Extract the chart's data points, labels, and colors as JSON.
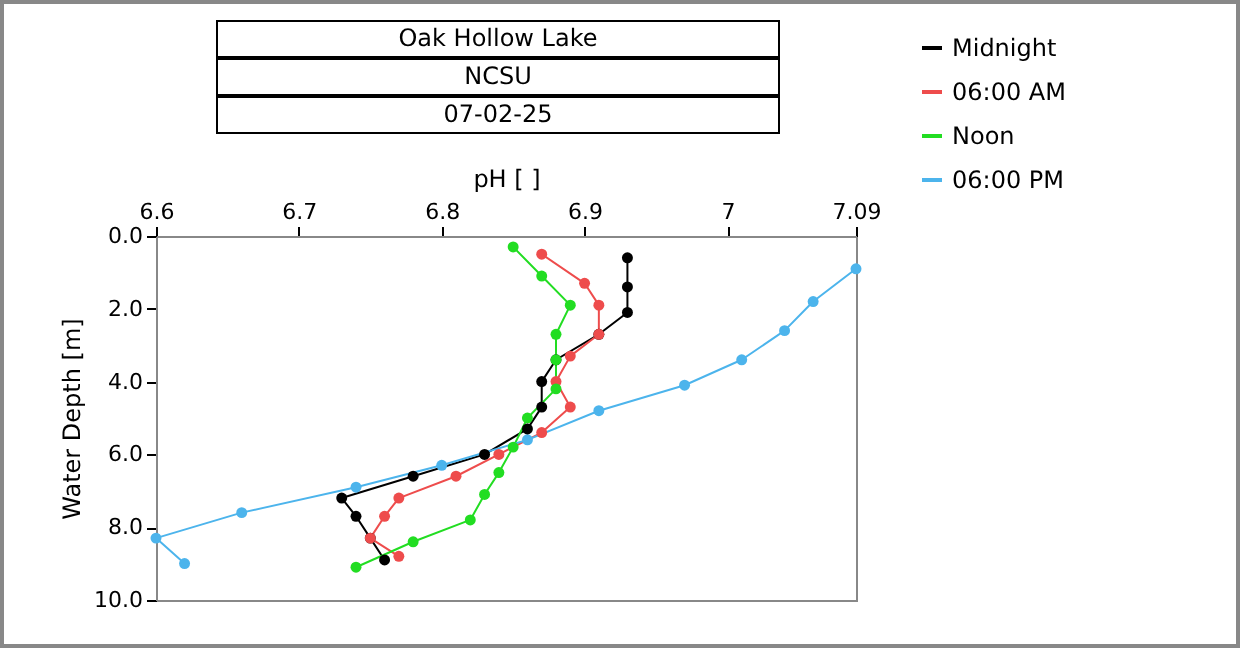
{
  "chart_data": {
    "type": "line",
    "title": "Oak Hollow Lake",
    "subtitle": "NCSU",
    "annotations": [
      "07-02-25"
    ],
    "xlabel": "pH [ ]",
    "ylabel": "Water Depth [m]",
    "xlim": [
      6.6,
      7.09
    ],
    "xticks": [
      6.6,
      6.7,
      6.8,
      6.9,
      7,
      7.09
    ],
    "ylim": [
      10,
      0
    ],
    "yticks": [
      {
        "value": 0,
        "label": "0.0"
      },
      {
        "value": 2,
        "label": "2.0"
      },
      {
        "value": 4,
        "label": "4.0"
      },
      {
        "value": 6,
        "label": "6.0"
      },
      {
        "value": 8,
        "label": "8.0"
      },
      {
        "value": 10,
        "label": "10.0"
      }
    ],
    "grid": false,
    "legend": "top right",
    "marker": "circle",
    "line_style": "solid",
    "series": [
      {
        "name": "Midnight",
        "color": "#000000",
        "x": [
          6.93,
          6.93,
          6.93,
          6.91,
          6.88,
          6.87,
          6.87,
          6.86,
          6.83,
          6.78,
          6.73,
          6.74,
          6.75,
          6.76
        ],
        "values": [
          0.6,
          1.4,
          2.1,
          2.7,
          3.4,
          4.0,
          4.7,
          5.3,
          6.0,
          6.6,
          7.2,
          7.7,
          8.3,
          8.9
        ]
      },
      {
        "name": "06:00 AM",
        "color": "#ee4c4c",
        "x": [
          6.87,
          6.9,
          6.91,
          6.91,
          6.89,
          6.88,
          6.89,
          6.87,
          6.84,
          6.81,
          6.77,
          6.76,
          6.75,
          6.77
        ],
        "values": [
          0.5,
          1.3,
          1.9,
          2.7,
          3.3,
          4.0,
          4.7,
          5.4,
          6.0,
          6.6,
          7.2,
          7.7,
          8.3,
          8.8
        ]
      },
      {
        "name": "Noon",
        "color": "#22dd22",
        "x": [
          6.85,
          6.87,
          6.89,
          6.88,
          6.88,
          6.88,
          6.86,
          6.85,
          6.84,
          6.83,
          6.82,
          6.78,
          6.74
        ],
        "values": [
          0.3,
          1.1,
          1.9,
          2.7,
          3.4,
          4.2,
          5.0,
          5.8,
          6.5,
          7.1,
          7.8,
          8.4,
          9.1
        ]
      },
      {
        "name": "06:00 PM",
        "color": "#4cb4ec",
        "x": [
          7.09,
          7.06,
          7.04,
          7.01,
          6.97,
          6.91,
          6.86,
          6.8,
          6.74,
          6.66,
          6.6,
          6.62
        ],
        "values": [
          0.9,
          1.8,
          2.6,
          3.4,
          4.1,
          4.8,
          5.6,
          6.3,
          6.9,
          7.6,
          8.3,
          9.0
        ]
      }
    ]
  }
}
